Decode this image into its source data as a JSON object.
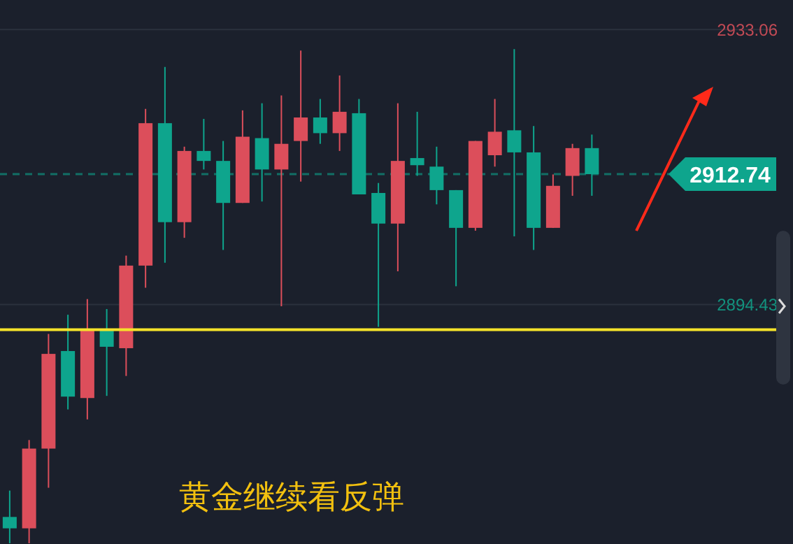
{
  "chart_data": {
    "type": "candlestick",
    "categories": [
      null,
      null,
      null,
      null,
      null,
      null,
      null,
      null,
      null,
      null,
      null,
      null,
      null,
      null,
      null,
      null,
      null,
      null,
      null,
      null,
      null,
      null,
      null,
      null,
      null,
      null,
      null,
      null,
      null,
      null,
      null,
      null,
      null,
      null,
      null,
      null,
      null,
      null,
      null,
      null
    ],
    "ohlc": [
      [
        2864.6,
        2868.3,
        2860.9,
        2863.0
      ],
      [
        2863.0,
        2875.4,
        2860.9,
        2874.2
      ],
      [
        2874.2,
        2890.3,
        2868.7,
        2887.5
      ],
      [
        2887.9,
        2893.0,
        2879.7,
        2881.5
      ],
      [
        2881.3,
        2895.2,
        2878.3,
        2890.9
      ],
      [
        2890.9,
        2893.8,
        2881.6,
        2888.5
      ],
      [
        2888.3,
        2901.3,
        2884.4,
        2899.9
      ],
      [
        2899.9,
        2921.9,
        2896.8,
        2919.9
      ],
      [
        2919.9,
        2927.8,
        2900.3,
        2906.0
      ],
      [
        2906.0,
        2916.6,
        2903.8,
        2916.0
      ],
      [
        2916.0,
        2920.5,
        2913.4,
        2914.6
      ],
      [
        2914.6,
        2917.4,
        2902.1,
        2908.7
      ],
      [
        2908.7,
        2921.7,
        2908.7,
        2918.0
      ],
      [
        2917.8,
        2922.7,
        2908.9,
        2913.4
      ],
      [
        2913.4,
        2923.8,
        2894.2,
        2917.0
      ],
      [
        2917.4,
        2930.1,
        2911.7,
        2920.7
      ],
      [
        2920.7,
        2923.3,
        2917.0,
        2918.5
      ],
      [
        2918.5,
        2926.6,
        2916.0,
        2921.5
      ],
      [
        2921.3,
        2923.3,
        2909.9,
        2909.9
      ],
      [
        2910.1,
        2911.5,
        2891.3,
        2905.8
      ],
      [
        2905.8,
        2922.7,
        2899.1,
        2914.6
      ],
      [
        2915.0,
        2921.5,
        2912.5,
        2914.0
      ],
      [
        2913.8,
        2916.6,
        2908.5,
        2910.5
      ],
      [
        2910.5,
        2910.5,
        2897.0,
        2905.2
      ],
      [
        2905.2,
        2917.4,
        2904.8,
        2917.4
      ],
      [
        2915.4,
        2923.3,
        2913.8,
        2918.7
      ],
      [
        2918.9,
        2930.3,
        2904.0,
        2915.8
      ],
      [
        2915.8,
        2919.5,
        2902.1,
        2905.2
      ],
      [
        2905.2,
        2912.7,
        2905.2,
        2911.1
      ],
      [
        2912.5,
        2917.0,
        2909.7,
        2916.4
      ],
      [
        2916.4,
        2918.3,
        2909.7,
        2912.74
      ],
      null,
      null,
      null,
      null,
      null,
      null,
      null,
      null,
      null
    ],
    "colors": [
      "#0ea58d",
      "#dc4e5b",
      "#dc4e5b",
      "#0ea58d",
      "#dc4e5b",
      "#0ea58d",
      "#dc4e5b",
      "#dc4e5b",
      "#0ea58d",
      "#dc4e5b",
      "#0ea58d",
      "#0ea58d",
      "#dc4e5b",
      "#0ea58d",
      "#dc4e5b",
      "#dc4e5b",
      "#0ea58d",
      "#dc4e5b",
      "#0ea58d",
      "#0ea58d",
      "#dc4e5b",
      "#0ea58d",
      "#0ea58d",
      "#0ea58d",
      "#dc4e5b",
      "#dc4e5b",
      "#0ea58d",
      "#0ea58d",
      "#dc4e5b",
      "#dc4e5b",
      "#0ea58d",
      null,
      null,
      null,
      null,
      null,
      null,
      null,
      null,
      null
    ],
    "ylim": [
      2860.8,
      2937.2
    ],
    "yticks": [
      2933.06,
      2894.43
    ],
    "tick_labels": "y",
    "grid": "y",
    "ref_lines": [
      {
        "axis": "y",
        "value": 2890.9,
        "color": "#f5e32a",
        "line_style": "solid"
      },
      {
        "axis": "y",
        "value": 2912.74,
        "label": "2912.74",
        "color": "#0ea58d",
        "line_style": "dashed"
      }
    ],
    "annotations": [
      "黄金继续看反弹"
    ]
  }
}
